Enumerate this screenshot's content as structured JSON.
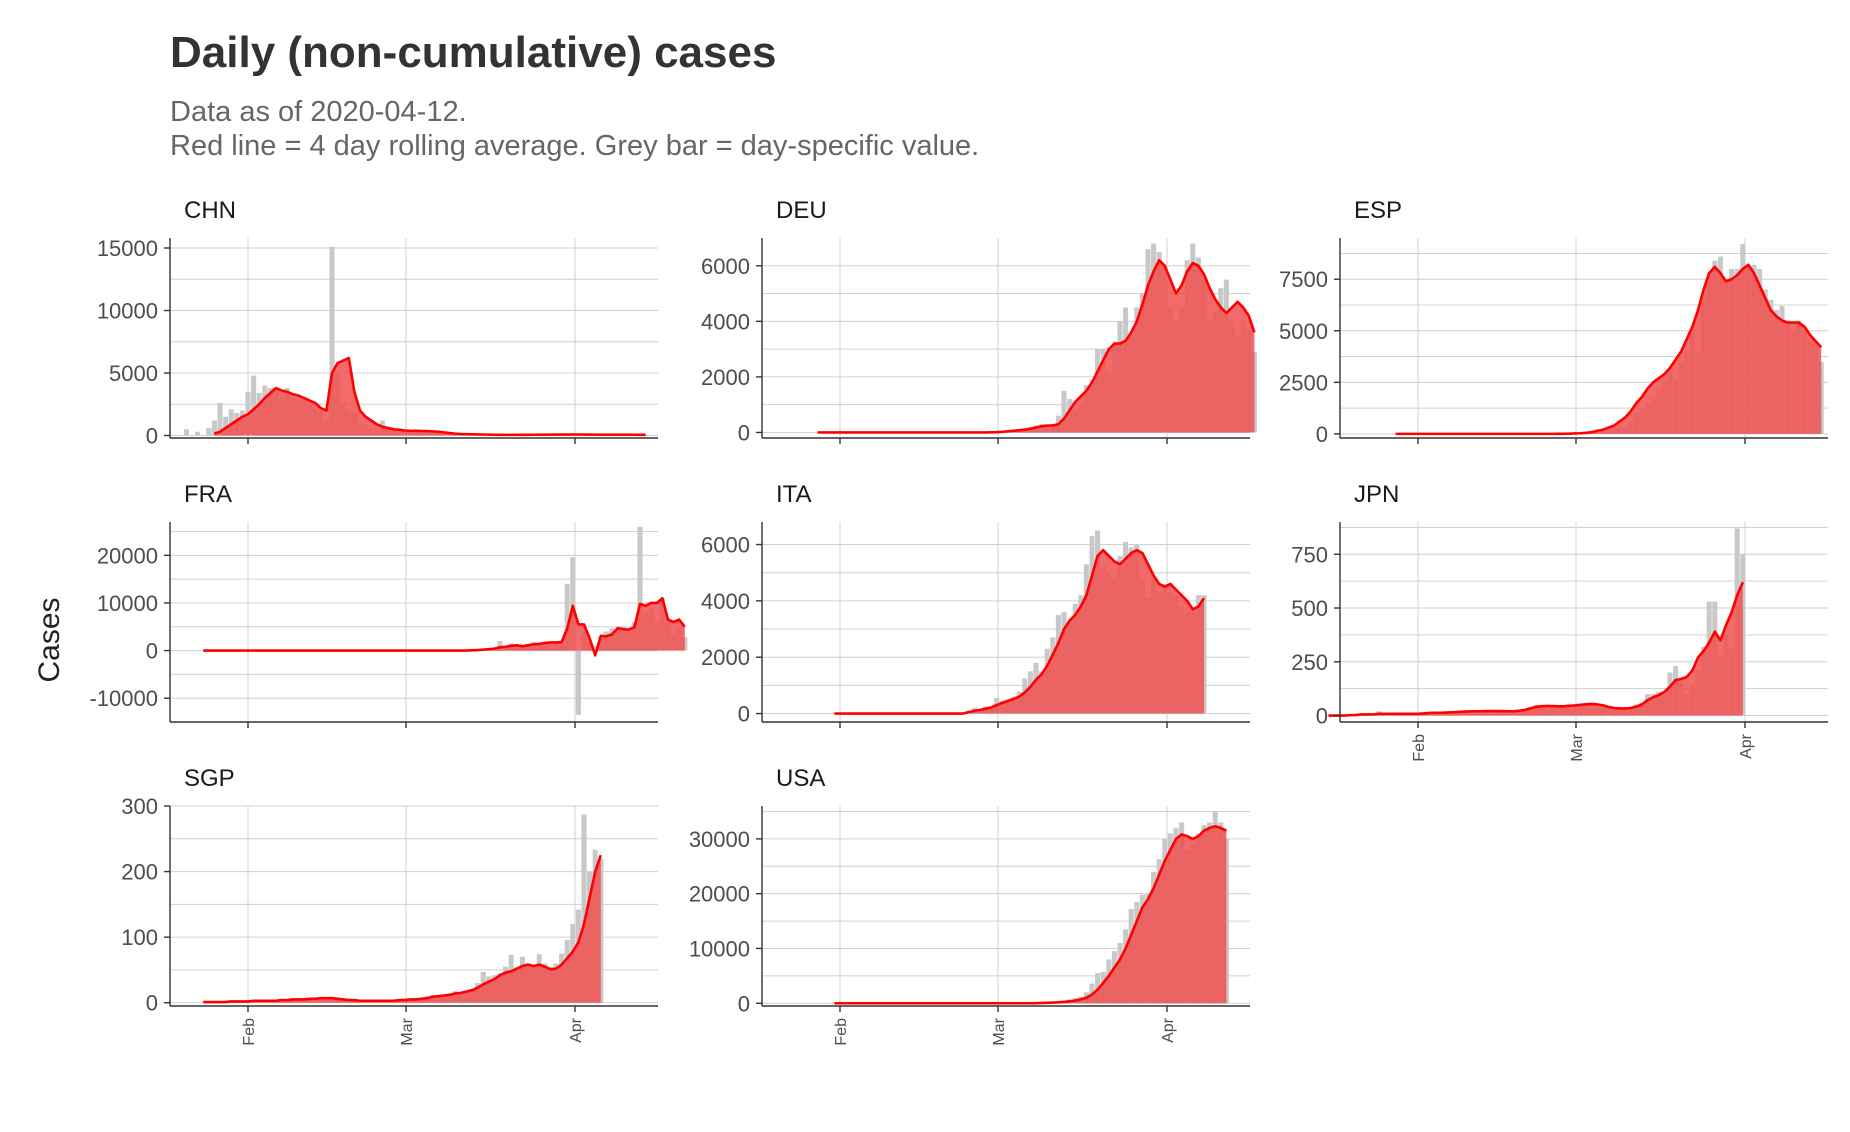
{
  "title": "Daily (non-cumulative) cases",
  "subtitle_line1": "Data as of 2020-04-12.",
  "subtitle_line2": "Red line = 4 day rolling average. Grey bar = day-specific value.",
  "ylabel": "Cases",
  "colors": {
    "bar": "#c8c8c8",
    "area": "#f05050",
    "line": "#ff0000",
    "grid": "#d0d0d0",
    "axis": "#333333"
  },
  "chart_data": [
    {
      "type": "bar",
      "name": "CHN",
      "x_start": "2020-01-20",
      "ylim": [
        -200,
        15800
      ],
      "yticks": [
        0,
        5000,
        10000,
        15000
      ],
      "xticks": [],
      "values": [
        0,
        500,
        0,
        300,
        0,
        600,
        1200,
        2600,
        1500,
        2100,
        1800,
        2000,
        3500,
        4800,
        3400,
        4000,
        3800,
        3700,
        3000,
        3800,
        3000,
        2800,
        3100,
        2500,
        2100,
        2000,
        1200,
        15100,
        5000,
        2600,
        2000,
        1800,
        1000,
        900,
        600,
        400,
        1200,
        500,
        400,
        600,
        300,
        400,
        500,
        300,
        400,
        400,
        300,
        200,
        150,
        100,
        200,
        100,
        80,
        100,
        60,
        50,
        40,
        50,
        30,
        40,
        50,
        60,
        50,
        70,
        80,
        80,
        80,
        90,
        100,
        80,
        90,
        80,
        80,
        70,
        60,
        50,
        60,
        70,
        70,
        60,
        60,
        50,
        50,
        40
      ],
      "avg": [
        null,
        null,
        null,
        null,
        null,
        null,
        150,
        300,
        600,
        900,
        1200,
        1500,
        1700,
        2100,
        2500,
        3000,
        3400,
        3800,
        3600,
        3500,
        3300,
        3200,
        3000,
        2800,
        2600,
        2200,
        2000,
        5000,
        5800,
        6000,
        6200,
        3500,
        2000,
        1500,
        1200,
        900,
        700,
        600,
        500,
        450,
        400,
        380,
        370,
        360,
        350,
        330,
        300,
        250,
        200,
        150,
        120,
        110,
        100,
        90,
        80,
        70,
        60,
        55,
        50,
        50,
        52,
        55,
        58,
        60,
        65,
        68,
        70,
        72,
        75,
        78,
        80,
        80,
        78,
        75,
        70,
        65,
        62,
        62,
        62,
        62,
        62,
        60,
        58,
        55
      ]
    },
    {
      "type": "bar",
      "name": "DEU",
      "x_start": "2020-01-28",
      "ylim": [
        -200,
        7000
      ],
      "yticks": [
        0,
        2000,
        4000,
        6000
      ],
      "xticks": [],
      "values": [
        0,
        0,
        0,
        0,
        0,
        0,
        0,
        0,
        0,
        0,
        0,
        0,
        0,
        0,
        0,
        0,
        0,
        0,
        0,
        0,
        0,
        0,
        0,
        0,
        0,
        0,
        0,
        0,
        0,
        0,
        0,
        10,
        20,
        20,
        50,
        80,
        100,
        150,
        200,
        250,
        300,
        200,
        300,
        600,
        1500,
        1200,
        800,
        1000,
        1700,
        1900,
        3000,
        3000,
        2200,
        3200,
        4000,
        4500,
        3500,
        4500,
        5000,
        6600,
        6800,
        6500,
        6000,
        4500,
        4000,
        4500,
        6200,
        6800,
        6300,
        5500,
        4000,
        4300,
        5200,
        5500,
        4000,
        3500,
        4000,
        3700,
        2900
      ],
      "avg": [
        0,
        0,
        0,
        0,
        0,
        0,
        0,
        0,
        0,
        0,
        0,
        0,
        0,
        0,
        0,
        0,
        0,
        0,
        0,
        0,
        0,
        0,
        0,
        0,
        0,
        0,
        0,
        0,
        0,
        0,
        0,
        5,
        10,
        20,
        40,
        60,
        80,
        100,
        130,
        180,
        220,
        250,
        250,
        300,
        500,
        800,
        1100,
        1300,
        1500,
        1800,
        2200,
        2600,
        3000,
        3200,
        3200,
        3300,
        3600,
        4000,
        4600,
        5300,
        5800,
        6200,
        6000,
        5500,
        5000,
        5300,
        5800,
        6100,
        6000,
        5700,
        5200,
        4800,
        4500,
        4300,
        4500,
        4700,
        4500,
        4200,
        3600
      ]
    },
    {
      "type": "bar",
      "name": "ESP",
      "x_start": "2020-01-28",
      "ylim": [
        -200,
        9500
      ],
      "yticks": [
        0,
        2500,
        5000,
        7500
      ],
      "xticks": [],
      "values": [
        0,
        0,
        0,
        0,
        0,
        0,
        0,
        0,
        0,
        0,
        0,
        0,
        0,
        0,
        0,
        0,
        0,
        0,
        0,
        0,
        0,
        0,
        0,
        0,
        0,
        0,
        0,
        0,
        0,
        5,
        10,
        20,
        30,
        30,
        40,
        50,
        100,
        100,
        200,
        300,
        400,
        300,
        600,
        1000,
        1200,
        1500,
        1700,
        2100,
        2500,
        3000,
        2600,
        3500,
        4000,
        4900,
        4000,
        6400,
        7800,
        8400,
        8600,
        7500,
        8000,
        8000,
        9200,
        8000,
        8200,
        8000,
        7000,
        6500,
        6000,
        6200,
        5500,
        5000,
        5500,
        5000,
        4500,
        4300,
        3500
      ],
      "avg": [
        0,
        0,
        0,
        0,
        0,
        0,
        0,
        0,
        0,
        0,
        0,
        0,
        0,
        0,
        0,
        0,
        0,
        0,
        0,
        0,
        0,
        0,
        0,
        0,
        0,
        0,
        0,
        0,
        0,
        2,
        5,
        10,
        20,
        30,
        50,
        80,
        150,
        200,
        300,
        400,
        600,
        800,
        1100,
        1500,
        1800,
        2200,
        2500,
        2700,
        2900,
        3200,
        3600,
        4000,
        4600,
        5200,
        6000,
        7000,
        7800,
        8100,
        7800,
        7400,
        7500,
        7700,
        8000,
        8200,
        7800,
        7200,
        6600,
        6000,
        5700,
        5500,
        5400,
        5400,
        5400,
        5200,
        4800,
        4500,
        4200
      ]
    },
    {
      "type": "bar",
      "name": "FRA",
      "x_start": "2020-01-24",
      "ylim": [
        -15000,
        27000
      ],
      "yticks": [
        -10000,
        0,
        10000,
        20000
      ],
      "xticks": [],
      "values": [
        0,
        0,
        0,
        0,
        0,
        0,
        0,
        0,
        0,
        0,
        0,
        0,
        0,
        0,
        0,
        0,
        0,
        0,
        0,
        0,
        0,
        0,
        0,
        0,
        0,
        0,
        0,
        0,
        0,
        0,
        0,
        0,
        0,
        0,
        0,
        0,
        0,
        0,
        0,
        0,
        0,
        0,
        0,
        0,
        0,
        0,
        0,
        0,
        100,
        200,
        300,
        500,
        400,
        2000,
        1000,
        1500,
        1200,
        500,
        1400,
        1800,
        1600,
        1600,
        1900,
        1700,
        1900,
        14000,
        19600,
        -13500,
        4000,
        2000,
        1000,
        3000,
        4000,
        4700,
        3800,
        5000,
        4000,
        6000,
        26000,
        8000,
        9000,
        6000,
        11000,
        6000,
        3500,
        5000,
        2800
      ],
      "avg": [
        0,
        0,
        0,
        0,
        0,
        0,
        0,
        0,
        0,
        0,
        0,
        0,
        0,
        0,
        0,
        0,
        0,
        0,
        0,
        0,
        0,
        0,
        0,
        0,
        0,
        0,
        0,
        0,
        0,
        0,
        0,
        0,
        0,
        0,
        0,
        0,
        0,
        0,
        0,
        0,
        0,
        0,
        0,
        0,
        0,
        0,
        0,
        0,
        50,
        100,
        200,
        300,
        400,
        700,
        800,
        1000,
        1100,
        900,
        1100,
        1300,
        1400,
        1600,
        1700,
        1700,
        1800,
        4600,
        9400,
        5500,
        5500,
        2600,
        -1000,
        3100,
        3000,
        3400,
        4700,
        4500,
        4400,
        4900,
        9800,
        9400,
        10000,
        10000,
        11000,
        6500,
        6000,
        6500,
        5000
      ]
    },
    {
      "type": "bar",
      "name": "ITA",
      "x_start": "2020-01-31",
      "ylim": [
        -300,
        6800
      ],
      "yticks": [
        0,
        2000,
        4000,
        6000
      ],
      "xticks": [],
      "values": [
        0,
        0,
        0,
        0,
        0,
        0,
        0,
        0,
        0,
        0,
        0,
        0,
        0,
        0,
        0,
        0,
        0,
        0,
        0,
        0,
        0,
        0,
        0,
        0,
        100,
        200,
        150,
        250,
        250,
        550,
        450,
        500,
        580,
        780,
        1250,
        1500,
        1800,
        1500,
        2300,
        2700,
        3500,
        3600,
        3200,
        3900,
        4200,
        5300,
        6300,
        6500,
        5200,
        5000,
        4800,
        5600,
        6100,
        5900,
        6000,
        4800,
        4100,
        4800,
        4300,
        4600,
        4300,
        4200,
        3800,
        3600,
        3600,
        4200,
        4200
      ],
      "avg": [
        0,
        0,
        0,
        0,
        0,
        0,
        0,
        0,
        0,
        0,
        0,
        0,
        0,
        0,
        0,
        0,
        0,
        0,
        0,
        0,
        0,
        0,
        0,
        0,
        50,
        100,
        130,
        170,
        220,
        300,
        380,
        450,
        520,
        600,
        750,
        950,
        1200,
        1400,
        1700,
        2100,
        2500,
        3000,
        3300,
        3500,
        3800,
        4200,
        4900,
        5600,
        5800,
        5600,
        5400,
        5300,
        5500,
        5700,
        5800,
        5700,
        5300,
        4900,
        4600,
        4500,
        4600,
        4400,
        4200,
        4000,
        3700,
        3800,
        4100
      ]
    },
    {
      "type": "bar",
      "name": "JPN",
      "x_start": "2020-01-16",
      "ylim": [
        -30,
        900
      ],
      "yticks": [
        0,
        250,
        500,
        750
      ],
      "xticks": [
        "Feb",
        "Mar",
        "Apr"
      ],
      "values": [
        0,
        0,
        0,
        0,
        5,
        5,
        10,
        5,
        0,
        20,
        10,
        5,
        5,
        10,
        5,
        5,
        10,
        10,
        15,
        15,
        10,
        10,
        15,
        15,
        20,
        20,
        25,
        20,
        20,
        20,
        20,
        20,
        20,
        15,
        20,
        30,
        40,
        50,
        50,
        40,
        35,
        40,
        40,
        55,
        50,
        55,
        60,
        60,
        45,
        35,
        30,
        25,
        30,
        35,
        40,
        50,
        60,
        100,
        100,
        110,
        100,
        200,
        230,
        150,
        100,
        140,
        210,
        320,
        530,
        530,
        280,
        380,
        310,
        870,
        750
      ],
      "avg": [
        0,
        0,
        0,
        0,
        2,
        3,
        5,
        5,
        5,
        8,
        8,
        8,
        8,
        8,
        8,
        8,
        8,
        10,
        12,
        13,
        13,
        14,
        15,
        16,
        18,
        19,
        20,
        20,
        21,
        21,
        21,
        21,
        20,
        20,
        22,
        26,
        33,
        40,
        43,
        45,
        44,
        43,
        43,
        45,
        47,
        50,
        52,
        54,
        52,
        48,
        40,
        35,
        33,
        33,
        35,
        42,
        52,
        72,
        85,
        95,
        110,
        135,
        165,
        170,
        180,
        210,
        270,
        300,
        340,
        390,
        350,
        420,
        480,
        560,
        620
      ]
    },
    {
      "type": "bar",
      "name": "SGP",
      "x_start": "2020-01-24",
      "ylim": [
        -5,
        300
      ],
      "yticks": [
        0,
        100,
        200,
        300
      ],
      "xticks": [
        "Feb",
        "Mar",
        "Apr"
      ],
      "values": [
        1,
        2,
        1,
        1,
        2,
        1,
        3,
        2,
        4,
        3,
        2,
        3,
        4,
        3,
        4,
        5,
        6,
        6,
        5,
        7,
        8,
        7,
        9,
        8,
        5,
        4,
        3,
        3,
        2,
        3,
        2,
        3,
        4,
        2,
        3,
        5,
        6,
        4,
        3,
        8,
        10,
        12,
        9,
        10,
        14,
        18,
        16,
        18,
        21,
        30,
        47,
        40,
        42,
        45,
        55,
        73,
        54,
        70,
        60,
        56,
        74,
        60,
        55,
        60,
        75,
        96,
        120,
        142,
        287,
        200,
        233,
        220
      ],
      "avg": [
        1,
        1,
        1,
        1,
        1,
        2,
        2,
        2,
        2,
        3,
        3,
        3,
        3,
        3,
        4,
        4,
        5,
        5,
        5,
        6,
        6,
        7,
        7,
        7,
        6,
        5,
        4,
        4,
        3,
        3,
        3,
        3,
        3,
        3,
        3,
        4,
        4,
        5,
        5,
        6,
        7,
        9,
        10,
        11,
        12,
        14,
        15,
        17,
        19,
        23,
        28,
        32,
        36,
        42,
        46,
        48,
        52,
        56,
        58,
        56,
        58,
        55,
        51,
        52,
        58,
        68,
        78,
        92,
        120,
        160,
        200,
        225
      ]
    },
    {
      "type": "bar",
      "name": "USA",
      "x_start": "2020-01-31",
      "ylim": [
        -500,
        36000
      ],
      "yticks": [
        0,
        10000,
        20000,
        30000
      ],
      "xticks": [
        "Feb",
        "Mar",
        "Apr"
      ],
      "values": [
        0,
        0,
        0,
        0,
        0,
        0,
        0,
        0,
        0,
        0,
        0,
        0,
        0,
        0,
        0,
        0,
        0,
        0,
        0,
        0,
        0,
        0,
        0,
        0,
        0,
        0,
        0,
        0,
        0,
        0,
        0,
        0,
        0,
        0,
        0,
        0,
        50,
        100,
        150,
        200,
        300,
        500,
        700,
        1000,
        1200,
        2000,
        3600,
        5500,
        5700,
        8000,
        9500,
        11000,
        13500,
        17200,
        18500,
        19800,
        20000,
        24000,
        26300,
        30000,
        31000,
        32000,
        33000,
        28000,
        29000,
        31000,
        32500,
        33000,
        35000,
        33000,
        30000
      ],
      "avg": [
        0,
        0,
        0,
        0,
        0,
        0,
        0,
        0,
        0,
        0,
        0,
        0,
        0,
        0,
        0,
        0,
        0,
        0,
        0,
        0,
        0,
        0,
        0,
        0,
        0,
        0,
        0,
        0,
        0,
        0,
        0,
        0,
        0,
        0,
        0,
        0,
        20,
        50,
        80,
        120,
        170,
        250,
        350,
        500,
        700,
        1000,
        1600,
        2500,
        3700,
        5000,
        6500,
        8000,
        10000,
        12500,
        15000,
        17500,
        19000,
        21000,
        23500,
        26000,
        28000,
        30000,
        30800,
        30500,
        30000,
        30500,
        31500,
        32000,
        32300,
        32000,
        31500
      ]
    }
  ]
}
